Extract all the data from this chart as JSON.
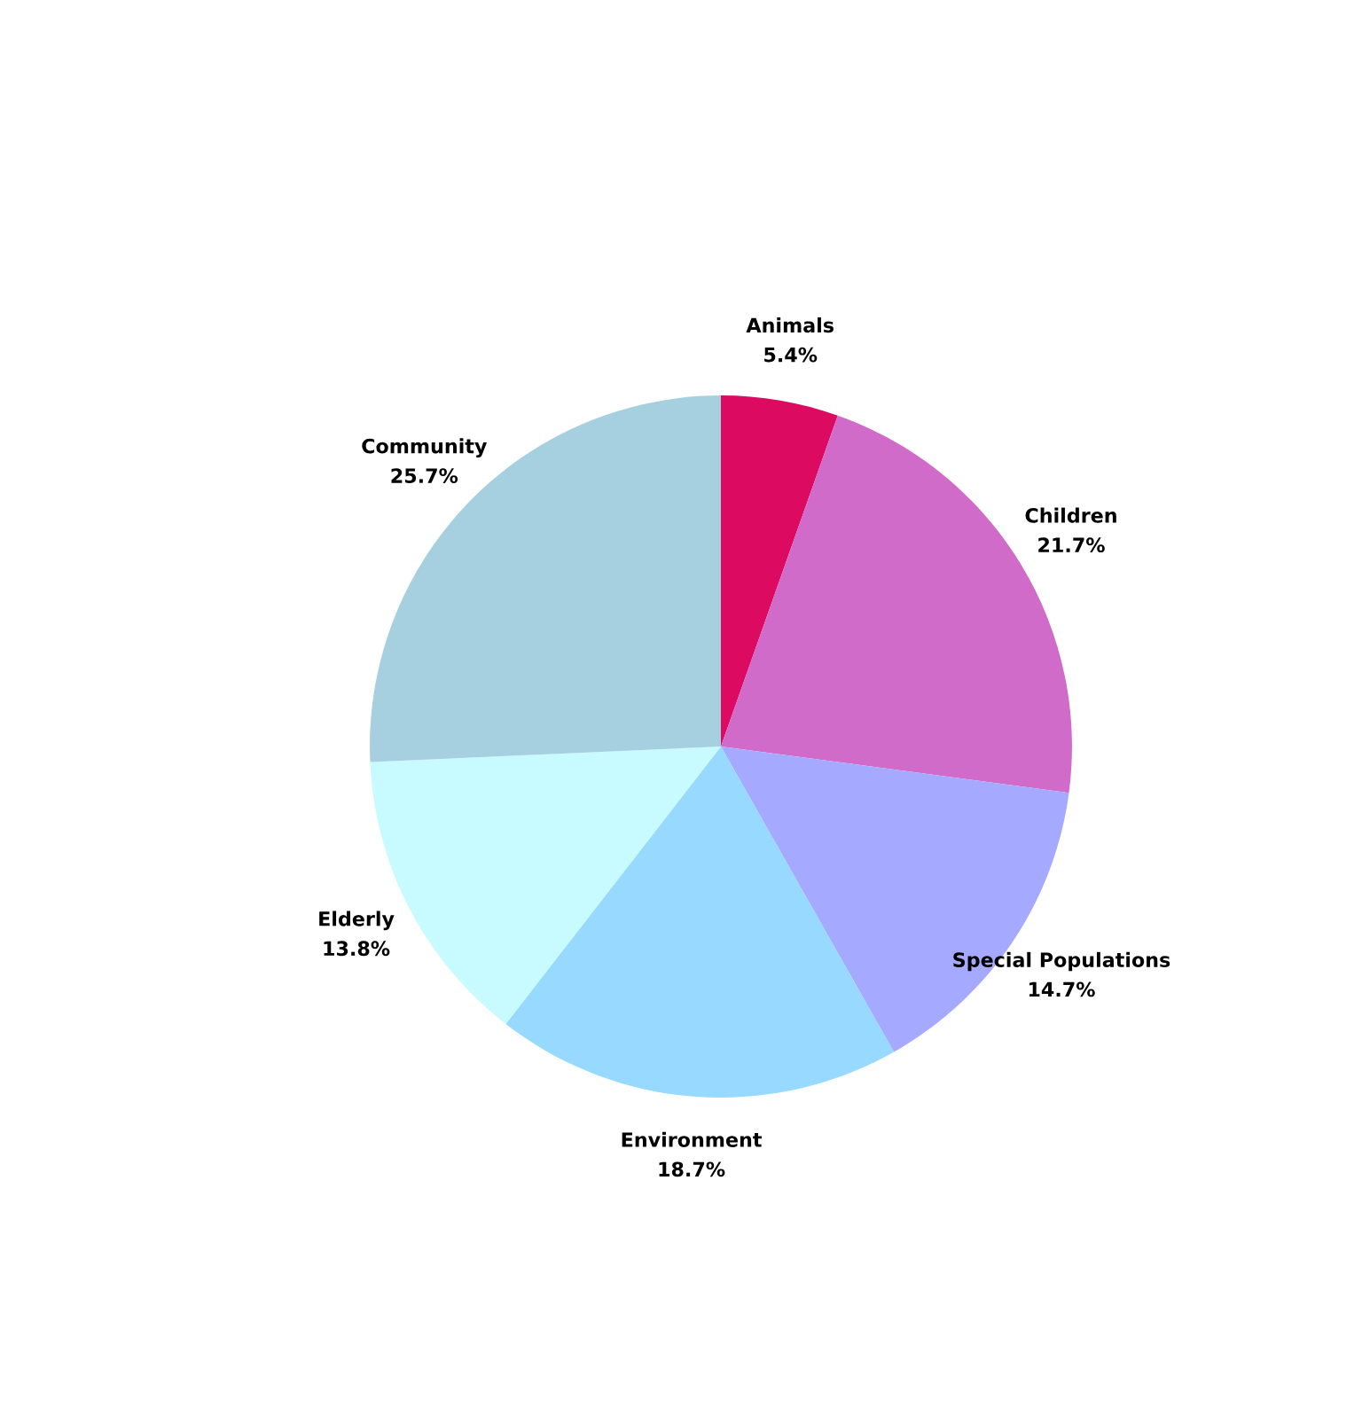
{
  "chart_data": {
    "type": "pie",
    "categories": [
      "Animals",
      "Children",
      "Special Populations",
      "Environment",
      "Elderly",
      "Community"
    ],
    "values": [
      5.4,
      21.7,
      14.7,
      18.7,
      13.8,
      25.7
    ],
    "value_labels": [
      "5.4%",
      "21.7%",
      "14.7%",
      "18.7%",
      "13.8%",
      "25.7%"
    ],
    "colors": [
      "#dc0a60",
      "#d16bc9",
      "#a5a9ff",
      "#97d9ff",
      "#c8fbff",
      "#a6cfdf"
    ],
    "legend": false
  }
}
